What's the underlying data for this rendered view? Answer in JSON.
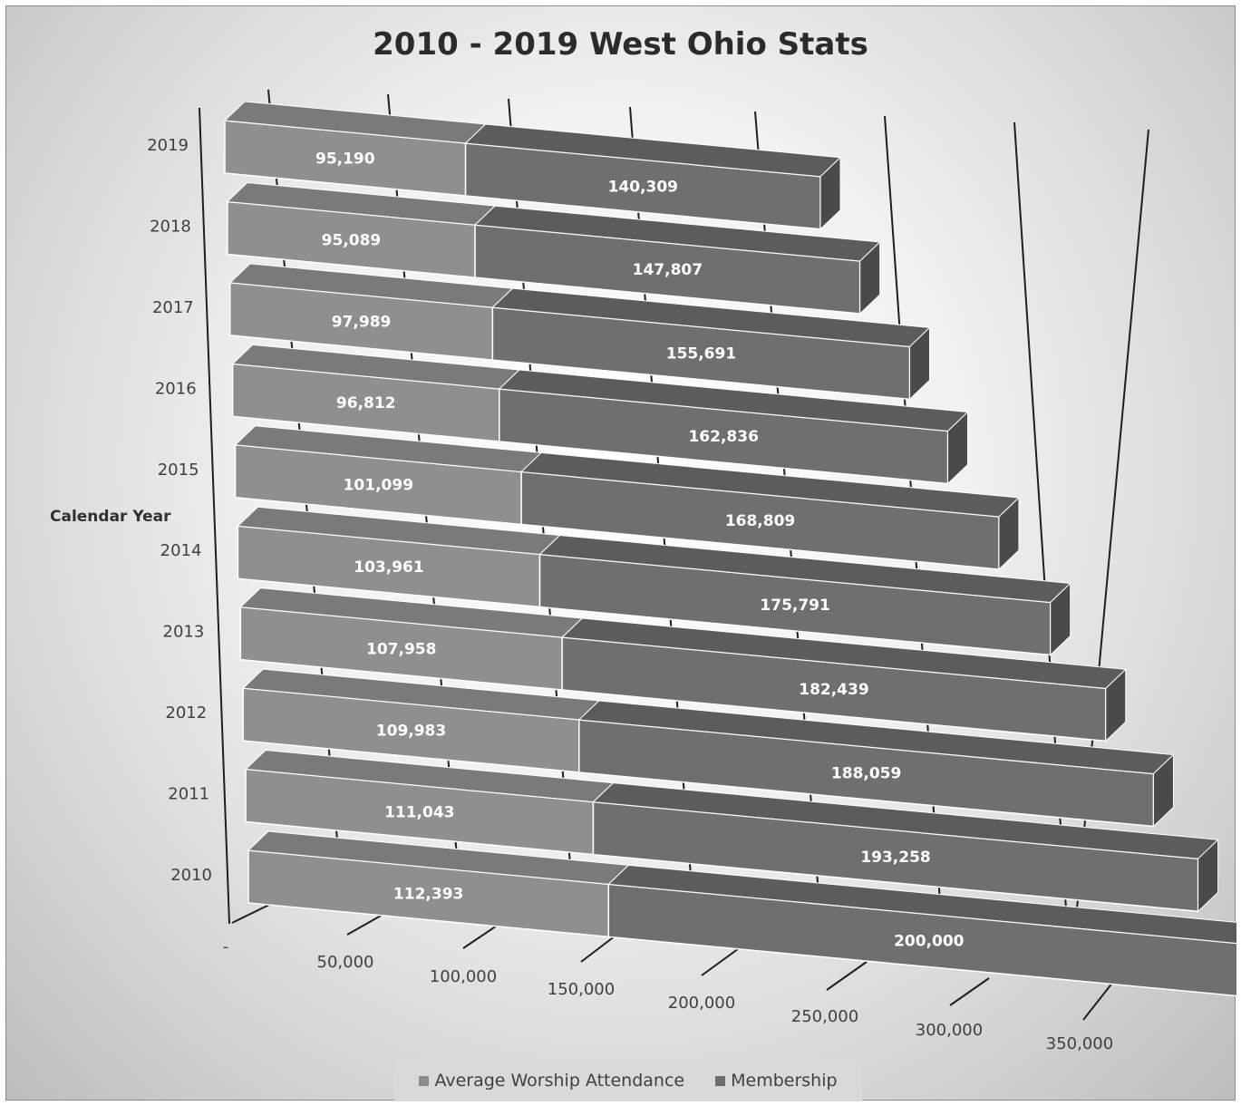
{
  "chart_data": {
    "type": "bar",
    "orientation": "horizontal",
    "stacked": true,
    "style": "3d",
    "title": "2010 - 2019 West Ohio Stats",
    "ylabel": "Calendar Year",
    "xlabel": "",
    "categories": [
      "2010",
      "2011",
      "2012",
      "2013",
      "2014",
      "2015",
      "2016",
      "2017",
      "2018",
      "2019"
    ],
    "series": [
      {
        "name": "Average Worship Attendance",
        "color": "#8c8c8c",
        "values": [
          112393,
          111043,
          109983,
          107958,
          103961,
          101099,
          96812,
          97989,
          95089,
          95190
        ]
      },
      {
        "name": "Membership",
        "color": "#6e6e6e",
        "values": [
          200000,
          193258,
          188059,
          182439,
          175791,
          168809,
          162836,
          155691,
          147807,
          140309
        ]
      }
    ],
    "data_labels": {
      "Average Worship Attendance": [
        "112,393",
        "111,043",
        "109,983",
        "107,958",
        "103,961",
        "101,099",
        "96,812",
        "97,989",
        "95,089",
        "95,190"
      ],
      "Membership": [
        "200,000",
        "193,258",
        "188,059",
        "182,439",
        "175,791",
        "168,809",
        "162,836",
        "155,691",
        "147,807",
        "140,309"
      ]
    },
    "xlim": [
      0,
      350000
    ],
    "xticks": [
      0,
      50000,
      100000,
      150000,
      200000,
      250000,
      300000,
      350000
    ],
    "xtick_labels": [
      "-",
      "50,000",
      "100,000",
      "150,000",
      "200,000",
      "250,000",
      "300,000",
      "350,000"
    ],
    "grid": true,
    "legend_position": "bottom"
  }
}
